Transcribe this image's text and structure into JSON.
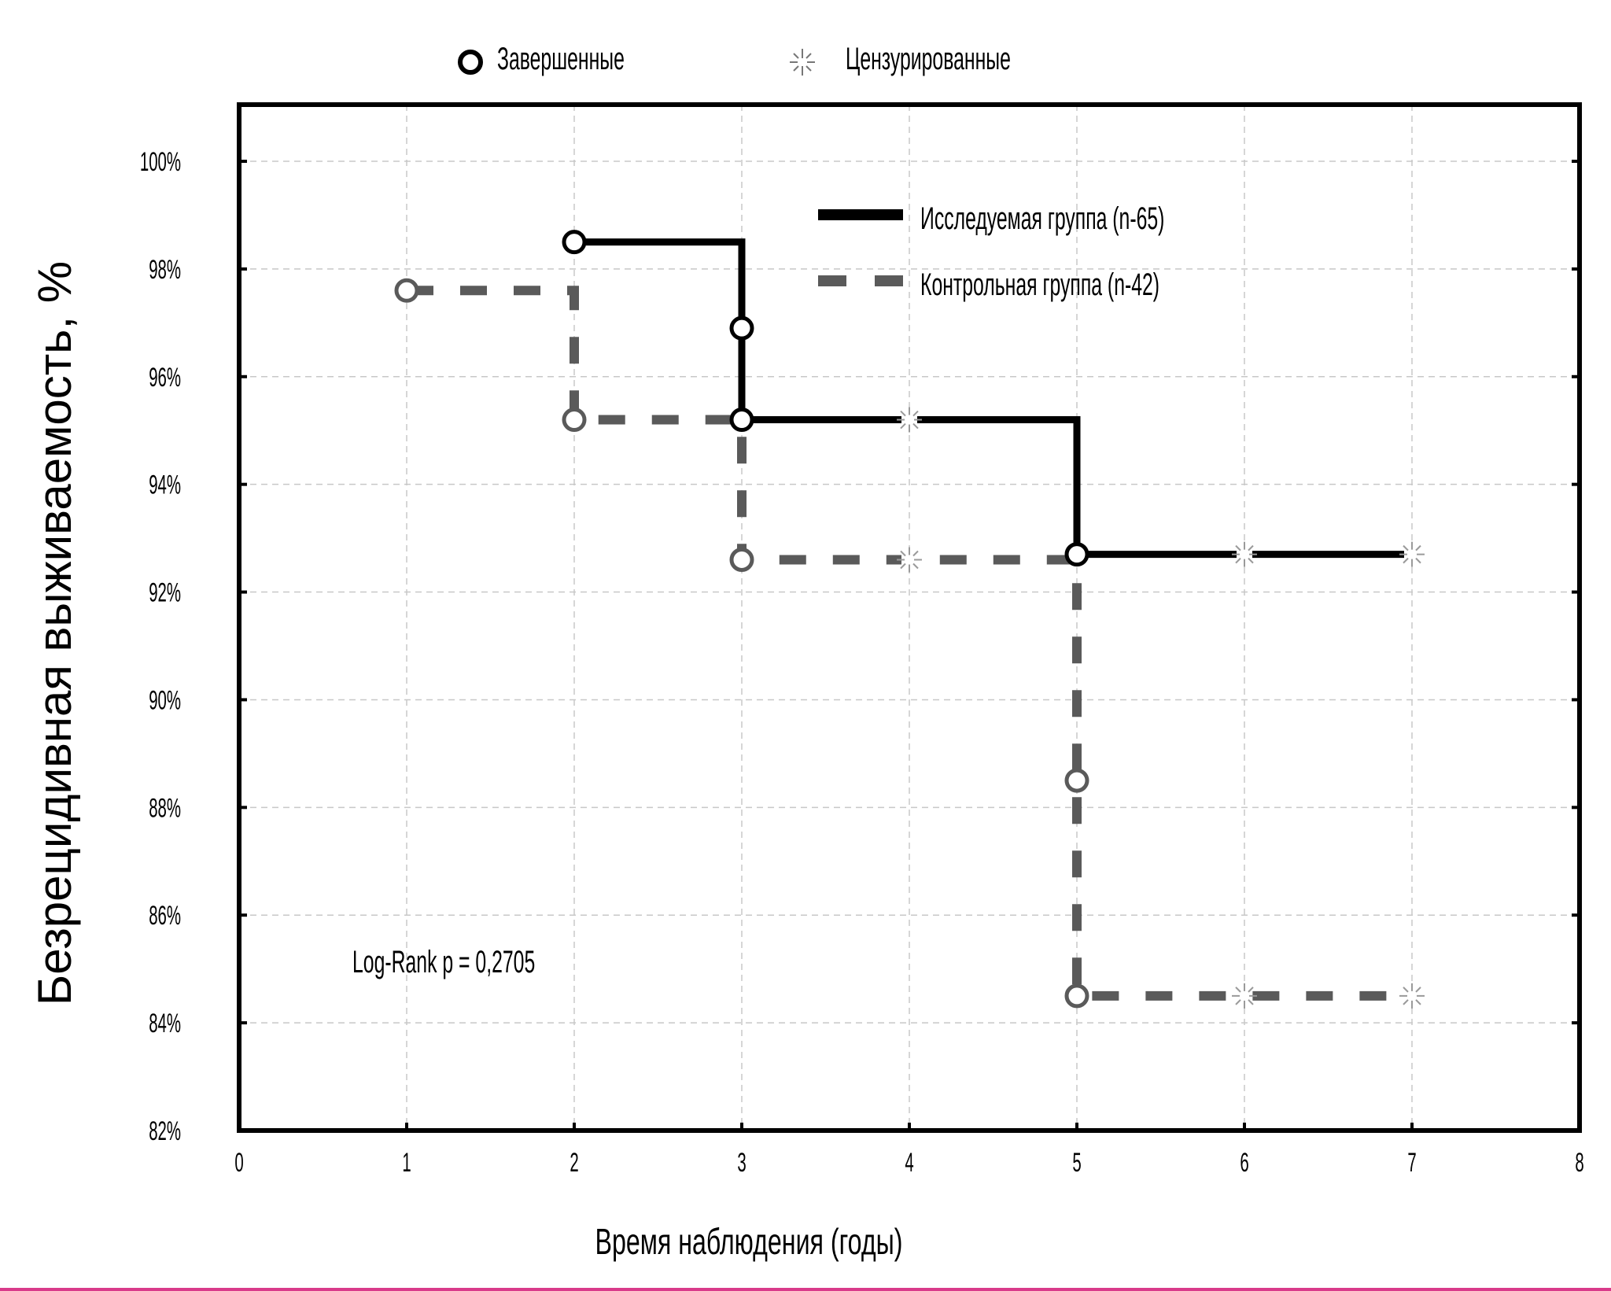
{
  "chart_data": {
    "type": "line",
    "subtype": "kaplan-meier",
    "title": "",
    "xlabel": "Время наблюдения (годы)",
    "ylabel": "Безрецидивная выживаемость,  %",
    "xlim": [
      0,
      8
    ],
    "ylim": [
      82,
      101
    ],
    "x_ticks": [
      "0",
      "1",
      "2",
      "3",
      "4",
      "5",
      "6",
      "7",
      "8"
    ],
    "y_ticks": [
      "82%",
      "84%",
      "86%",
      "88%",
      "90%",
      "92%",
      "94%",
      "96%",
      "98%",
      "100%"
    ],
    "grid": true,
    "marker_legend": {
      "completed": "Завершенные",
      "censored": "Цензурированные"
    },
    "legend_position": "top-right",
    "annotation": "Log-Rank p = 0,2705",
    "series": [
      {
        "name": "Исследуемая группа (n-65)",
        "style": "solid",
        "color": "#000000",
        "steps": [
          [
            2,
            98.5
          ],
          [
            3,
            98.5
          ],
          [
            3,
            95.2
          ],
          [
            5,
            95.2
          ],
          [
            5,
            92.7
          ],
          [
            7,
            92.7
          ]
        ],
        "completed": [
          [
            2,
            98.5
          ],
          [
            3,
            96.9
          ],
          [
            3,
            95.2
          ],
          [
            5,
            92.7
          ]
        ],
        "censored": [
          [
            4,
            95.2
          ],
          [
            6,
            92.7
          ],
          [
            7,
            92.7
          ]
        ]
      },
      {
        "name": "Контрольная группа (n-42)",
        "style": "dashed",
        "color": "#5a5a5a",
        "steps": [
          [
            1,
            97.6
          ],
          [
            2,
            97.6
          ],
          [
            2,
            95.2
          ],
          [
            3,
            95.2
          ],
          [
            3,
            92.6
          ],
          [
            5,
            92.6
          ],
          [
            5,
            84.5
          ],
          [
            7,
            84.5
          ]
        ],
        "completed": [
          [
            1,
            97.6
          ],
          [
            2,
            95.2
          ],
          [
            3,
            92.6
          ],
          [
            5,
            88.5
          ],
          [
            5,
            84.5
          ]
        ],
        "censored": [
          [
            4,
            92.6
          ],
          [
            6,
            84.5
          ],
          [
            7,
            84.5
          ]
        ]
      }
    ]
  }
}
